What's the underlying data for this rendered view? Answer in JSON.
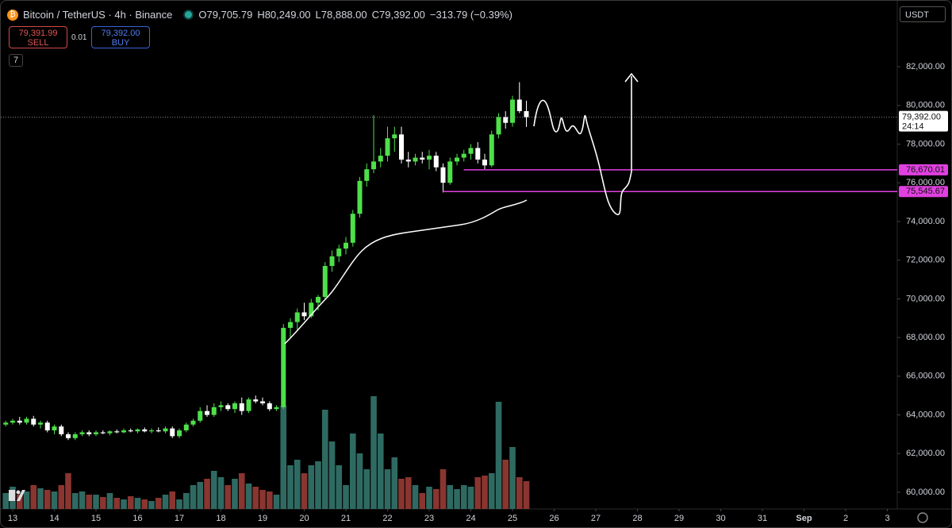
{
  "header": {
    "symbol": "Bitcoin / TetherUS · 4h · Binance",
    "ohlc": [
      "O79,705.79",
      "H80,249.00",
      "L78,888.00",
      "C79,392.00",
      "−313.79 (−0.39%)"
    ],
    "sell_price": "79,391.99",
    "sell_label": "SELL",
    "spread": "0.01",
    "buy_price": "79,392.00",
    "buy_label": "BUY",
    "indicator_count": "7",
    "currency": "USDT"
  },
  "chart_data": {
    "type": "candlestick",
    "x": [
      12.833,
      13,
      13.167,
      13.333,
      13.5,
      13.667,
      13.833,
      14,
      14.167,
      14.333,
      14.5,
      14.667,
      14.833,
      15,
      15.167,
      15.333,
      15.5,
      15.667,
      15.833,
      16,
      16.167,
      16.333,
      16.5,
      16.667,
      16.833,
      17,
      17.167,
      17.333,
      17.5,
      17.667,
      17.833,
      18,
      18.167,
      18.333,
      18.5,
      18.667,
      18.833,
      19,
      19.167,
      19.333,
      19.5,
      19.667,
      19.833,
      20,
      20.167,
      20.333,
      20.5,
      20.667,
      20.833,
      21,
      21.167,
      21.333,
      21.5,
      21.667,
      21.833,
      22,
      22.167,
      22.333,
      22.5,
      22.667,
      22.833,
      23,
      23.167,
      23.333,
      23.5,
      23.667,
      23.833,
      24,
      24.167,
      24.333,
      24.5,
      24.667,
      24.833,
      25,
      25.167,
      25.333
    ],
    "open": [
      63500,
      63600,
      63700,
      63600,
      63800,
      63500,
      63600,
      63200,
      63400,
      63000,
      62800,
      63000,
      63100,
      63000,
      63100,
      63050,
      63150,
      63100,
      63200,
      63150,
      63250,
      63150,
      63200,
      63150,
      63300,
      62900,
      63200,
      63500,
      63700,
      64200,
      64000,
      64400,
      64500,
      64300,
      64600,
      64200,
      64800,
      64700,
      64600,
      64300,
      64400,
      68500,
      68800,
      69300,
      69100,
      69800,
      70100,
      71700,
      72200,
      72600,
      72900,
      74400,
      76100,
      76700,
      77100,
      77400,
      78300,
      78500,
      77200,
      77100,
      77300,
      77200,
      77400,
      76800,
      76000,
      77100,
      77300,
      77500,
      77800,
      77200,
      76900,
      78500,
      79400,
      79100,
      80300,
      79705.79
    ],
    "high": [
      63700,
      63800,
      63900,
      63900,
      63950,
      63700,
      63700,
      63500,
      63500,
      63100,
      63100,
      63200,
      63200,
      63200,
      63200,
      63200,
      63250,
      63300,
      63300,
      63300,
      63350,
      63300,
      63350,
      63400,
      63400,
      63300,
      63600,
      63800,
      64400,
      64500,
      64600,
      64700,
      64600,
      64700,
      64900,
      64900,
      65000,
      64900,
      64700,
      64500,
      68700,
      69000,
      69500,
      69800,
      70000,
      70200,
      71900,
      72500,
      72800,
      73200,
      74600,
      76300,
      77000,
      79500,
      77800,
      78900,
      78900,
      78900,
      77600,
      77500,
      77600,
      77700,
      77600,
      77000,
      77300,
      77500,
      77700,
      78000,
      78100,
      77500,
      78700,
      79600,
      79700,
      80500,
      81200,
      80249
    ],
    "low": [
      63400,
      63500,
      63500,
      63500,
      63400,
      63300,
      63100,
      63000,
      62900,
      62700,
      62700,
      62900,
      62900,
      62900,
      63000,
      62950,
      63050,
      63050,
      63100,
      63050,
      63100,
      63050,
      63100,
      63050,
      62800,
      62800,
      63100,
      63400,
      63600,
      63900,
      63900,
      64200,
      64200,
      64100,
      64000,
      64100,
      64600,
      64500,
      64200,
      64200,
      64300,
      68000,
      68400,
      68900,
      69000,
      69400,
      70000,
      71400,
      71900,
      72300,
      72700,
      74200,
      75800,
      76500,
      76800,
      77100,
      77600,
      77000,
      76800,
      76900,
      77000,
      76700,
      76600,
      75500,
      75900,
      76900,
      77100,
      77200,
      77000,
      76700,
      76800,
      78300,
      78800,
      78900,
      79600,
      78888
    ],
    "close": [
      63600,
      63700,
      63600,
      63800,
      63500,
      63600,
      63200,
      63400,
      63000,
      62800,
      63000,
      63100,
      63000,
      63100,
      63050,
      63150,
      63100,
      63200,
      63150,
      63250,
      63150,
      63200,
      63150,
      63300,
      62900,
      63200,
      63500,
      63700,
      64200,
      64000,
      64400,
      64500,
      64300,
      64600,
      64200,
      64800,
      64700,
      64600,
      64300,
      64400,
      68500,
      68800,
      69300,
      69100,
      69800,
      70100,
      71700,
      72200,
      72600,
      72900,
      74400,
      76100,
      76700,
      77100,
      77400,
      78300,
      78500,
      77200,
      77100,
      77300,
      77200,
      77400,
      76800,
      76000,
      77100,
      77300,
      77500,
      77800,
      77200,
      76900,
      78500,
      79400,
      79100,
      80300,
      79705.79,
      79392
    ],
    "volume": [
      20,
      28,
      18,
      22,
      30,
      26,
      24,
      22,
      30,
      45,
      20,
      22,
      18,
      18,
      15,
      20,
      14,
      12,
      16,
      14,
      12,
      10,
      14,
      18,
      22,
      12,
      20,
      30,
      34,
      38,
      48,
      40,
      30,
      38,
      45,
      32,
      28,
      24,
      22,
      18,
      130,
      55,
      62,
      45,
      55,
      60,
      125,
      85,
      55,
      30,
      95,
      70,
      50,
      142,
      95,
      50,
      65,
      38,
      40,
      30,
      20,
      28,
      25,
      50,
      30,
      25,
      30,
      28,
      40,
      42,
      45,
      135,
      62,
      78,
      40,
      35
    ],
    "up_color": "#4ee04a",
    "down_color": "#ffffff",
    "volume_up_color": "#2f6a62",
    "volume_down_color": "#8a3530",
    "xlim": [
      12.714,
      34.238
    ],
    "ylim": [
      59138,
      85204
    ],
    "xticks": [
      13,
      14,
      15,
      16,
      17,
      18,
      19,
      20,
      21,
      22,
      23,
      24,
      25,
      26,
      27,
      28,
      29,
      30,
      31,
      {
        "value": 32,
        "label": "Sep"
      },
      {
        "value": 33,
        "label": "2"
      },
      {
        "value": 34,
        "label": "3"
      }
    ],
    "yticks": [
      {
        "value": 60000,
        "label": "60,000.00"
      },
      {
        "value": 62000,
        "label": "62,000.00"
      },
      {
        "value": 64000,
        "label": "64,000.00"
      },
      {
        "value": 66000,
        "label": "66,000.00"
      },
      {
        "value": 68000,
        "label": "68,000.00"
      },
      {
        "value": 70000,
        "label": "70,000.00"
      },
      {
        "value": 72000,
        "label": "72,000.00"
      },
      {
        "value": 74000,
        "label": "74,000.00"
      },
      {
        "value": 76000,
        "label": "76,000.00"
      },
      {
        "value": 78000,
        "label": "78,000.00"
      },
      {
        "value": 80000,
        "label": "80,000.00"
      },
      {
        "value": 82000,
        "label": "82,000.00"
      }
    ],
    "last_price": {
      "value": 79392,
      "label": "79,392.00",
      "countdown": "24:14"
    },
    "levels": [
      {
        "value": 76670.01,
        "label": "76,670.01",
        "from": 23.83,
        "color": "#e040e0"
      },
      {
        "value": 75545.67,
        "label": "75,545.67",
        "from": 23.33,
        "color": "#e040e0"
      }
    ]
  }
}
